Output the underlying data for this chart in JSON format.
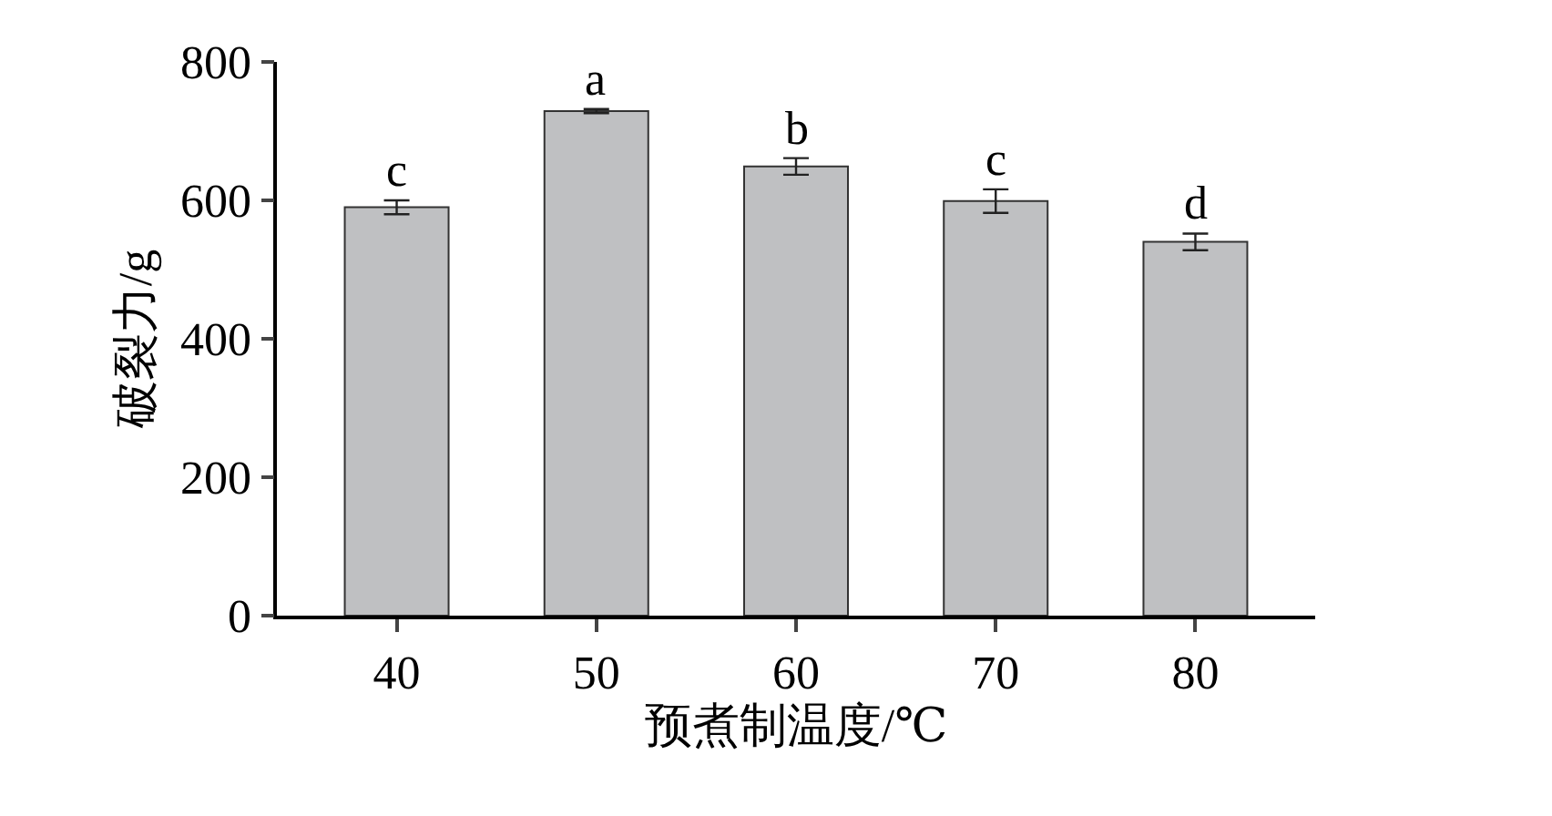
{
  "chart_data": {
    "type": "bar",
    "xlabel": "预煮制温度/℃",
    "ylabel": "破裂力/g",
    "categories": [
      "40",
      "50",
      "60",
      "70",
      "80"
    ],
    "values": [
      590,
      729,
      649,
      599,
      540
    ],
    "errors": [
      10,
      3,
      12,
      17,
      12
    ],
    "color": "#bfc0c2",
    "ylim": [
      0,
      800
    ],
    "yticks": [
      0,
      200,
      400,
      600,
      800
    ],
    "grid": false,
    "legend": false,
    "annotations": [
      {
        "text": "c",
        "x": "40",
        "y": 600
      },
      {
        "text": "a",
        "x": "50",
        "y": 732
      },
      {
        "text": "b",
        "x": "60",
        "y": 661
      },
      {
        "text": "c",
        "x": "70",
        "y": 616
      },
      {
        "text": "d",
        "x": "80",
        "y": 552
      }
    ]
  }
}
